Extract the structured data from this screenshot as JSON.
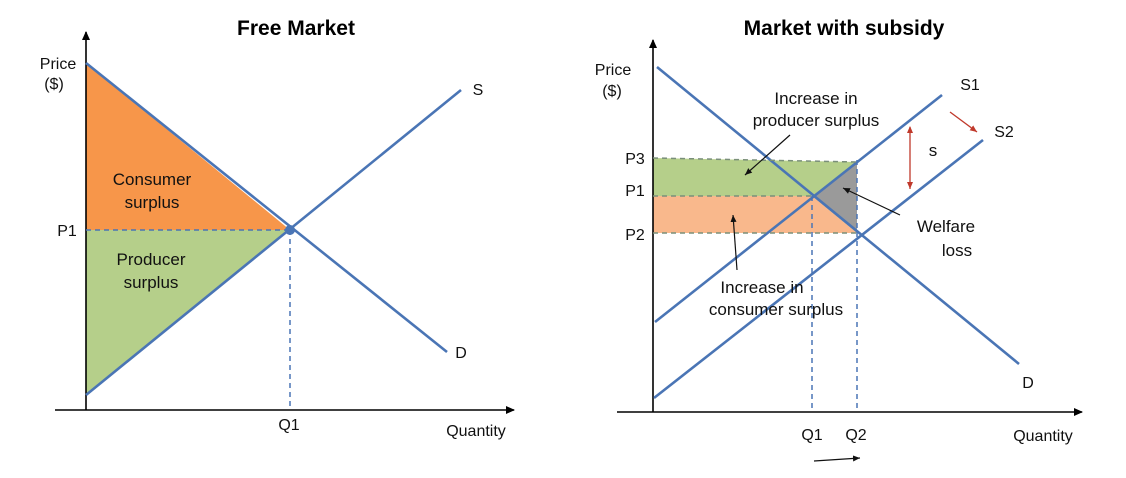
{
  "left": {
    "title": "Free Market",
    "y_axis_label_1": "Price",
    "y_axis_label_2": "($)",
    "x_axis_label": "Quantity",
    "supply_label": "S",
    "demand_label": "D",
    "p1_label": "P1",
    "q1_label": "Q1",
    "consumer_surplus_1": "Consumer",
    "consumer_surplus_2": "surplus",
    "producer_surplus_1": "Producer",
    "producer_surplus_2": "surplus"
  },
  "right": {
    "title": "Market with subsidy",
    "y_axis_label_1": "Price",
    "y_axis_label_2": "($)",
    "x_axis_label": "Quantity",
    "s1_label": "S1",
    "s2_label": "S2",
    "demand_label": "D",
    "p3_label": "P3",
    "p1_label": "P1",
    "p2_label": "P2",
    "q1_label": "Q1",
    "q2_label": "Q2",
    "subsidy_label": "s",
    "producer_increase_1": "Increase in",
    "producer_increase_2": "producer surplus",
    "consumer_increase_1": "Increase in",
    "consumer_increase_2": "consumer surplus",
    "welfare_loss_1": "Welfare",
    "welfare_loss_2": "loss"
  },
  "colors": {
    "consumer_surplus": "#f7964a",
    "producer_surplus": "#b5cf8a",
    "consumer_increase": "#f9b88c",
    "welfare_loss": "#9a9a9a",
    "curves": "#4a75b5",
    "subsidy_arrow": "#c0392b"
  }
}
